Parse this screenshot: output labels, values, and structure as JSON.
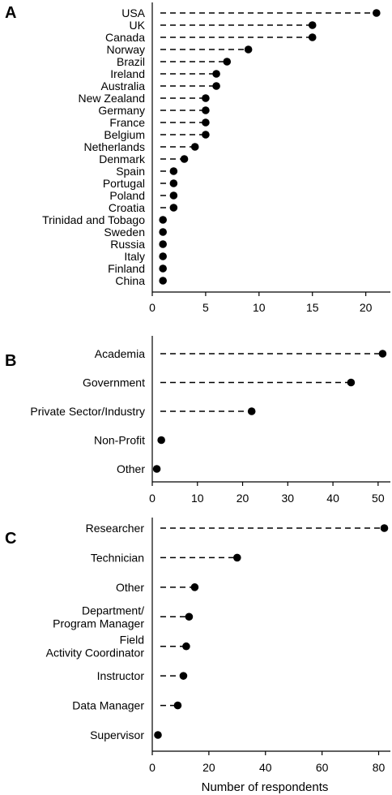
{
  "chart_data": [
    {
      "type": "lollipop",
      "panel": "A",
      "categories": [
        "USA",
        "UK",
        "Canada",
        "Norway",
        "Brazil",
        "Ireland",
        "Australia",
        "New Zealand",
        "Germany",
        "France",
        "Belgium",
        "Netherlands",
        "Denmark",
        "Spain",
        "Portugal",
        "Poland",
        "Croatia",
        "Trinidad and Tobago",
        "Sweden",
        "Russia",
        "Italy",
        "Finland",
        "China"
      ],
      "values": [
        21,
        15,
        15,
        9,
        7,
        6,
        6,
        5,
        5,
        5,
        5,
        4,
        3,
        2,
        2,
        2,
        2,
        1,
        1,
        1,
        1,
        1,
        1
      ],
      "xticks": [
        0,
        5,
        10,
        15,
        20
      ],
      "xlim": [
        0,
        22
      ],
      "xlabel": ""
    },
    {
      "type": "lollipop",
      "panel": "B",
      "categories": [
        "Academia",
        "Government",
        "Private Sector/Industry",
        "Non-Profit",
        "Other"
      ],
      "values": [
        51,
        44,
        22,
        2,
        1
      ],
      "xticks": [
        0,
        10,
        20,
        30,
        40,
        50
      ],
      "xlim": [
        0,
        52
      ],
      "xlabel": ""
    },
    {
      "type": "lollipop",
      "panel": "C",
      "categories": [
        [
          "Researcher"
        ],
        [
          "Technician"
        ],
        [
          "Other"
        ],
        [
          "Department/",
          "Program Manager"
        ],
        [
          "Field",
          "Activity Coordinator"
        ],
        [
          "Instructor"
        ],
        [
          "Data Manager"
        ],
        [
          "Supervisor"
        ]
      ],
      "values": [
        82,
        30,
        15,
        13,
        12,
        11,
        9,
        2
      ],
      "xticks": [
        0,
        20,
        40,
        60,
        80
      ],
      "xlim": [
        0,
        83
      ],
      "xlabel": "Number of respondents"
    }
  ]
}
